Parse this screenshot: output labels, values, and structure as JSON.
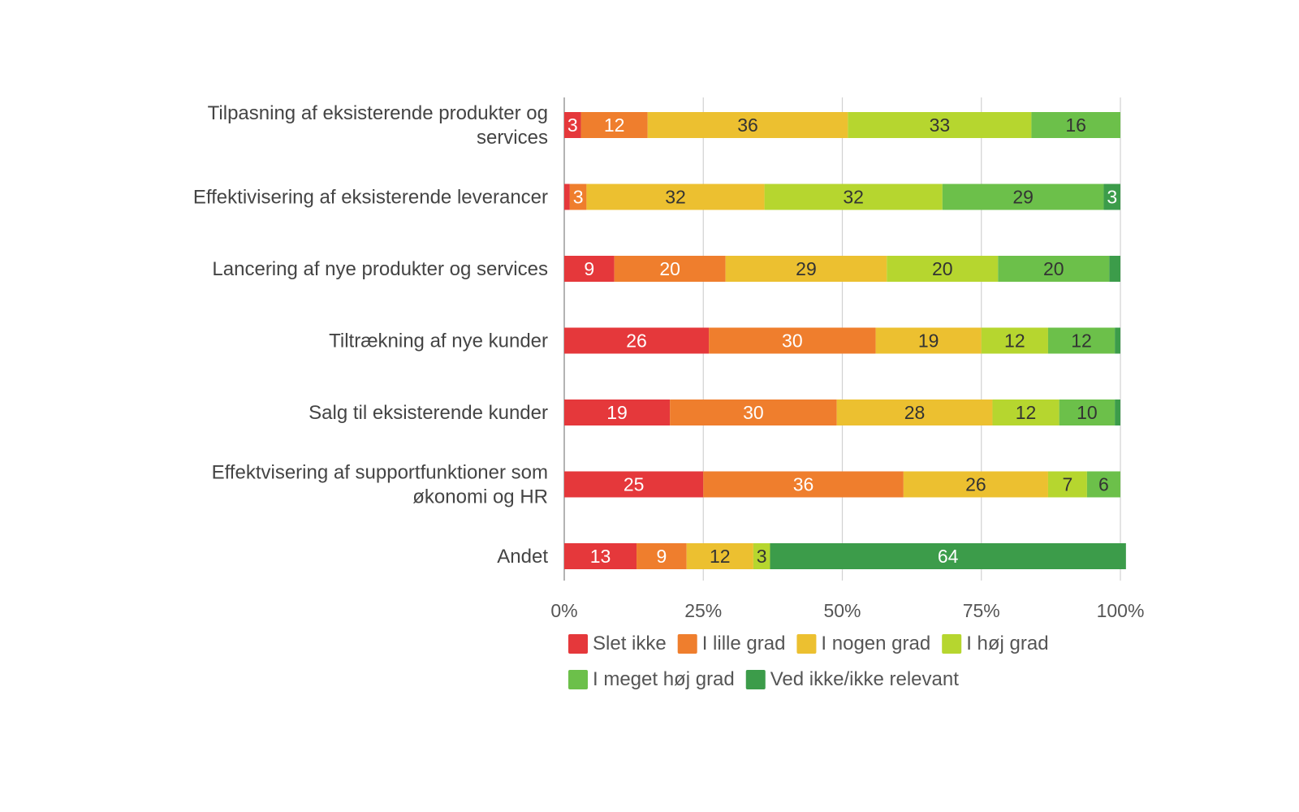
{
  "chart_data": {
    "type": "bar",
    "orientation": "horizontal",
    "stacked": true,
    "title": "",
    "xlabel": "",
    "ylabel": "",
    "xlim": [
      0,
      100
    ],
    "x_ticks": [
      "0%",
      "25%",
      "50%",
      "75%",
      "100%"
    ],
    "grid": true,
    "legend_position": "bottom",
    "categories": [
      [
        "Tilpasning af eksisterende produkter og",
        "services"
      ],
      [
        "Effektivisering af eksisterende leverancer"
      ],
      [
        "Lancering af nye produkter og services"
      ],
      [
        "Tiltrækning af nye kunder"
      ],
      [
        "Salg til eksisterende kunder"
      ],
      [
        "Effektvisering af supportfunktioner som",
        "økonomi og HR"
      ],
      [
        "Andet"
      ]
    ],
    "series": [
      {
        "name": "Slet ikke",
        "color": "#e5383b",
        "label_color": "#ffffff",
        "values": [
          3,
          1,
          9,
          26,
          19,
          25,
          13
        ]
      },
      {
        "name": "I lille grad",
        "color": "#ef7e2d",
        "label_color": "#ffffff",
        "values": [
          12,
          3,
          20,
          30,
          30,
          36,
          9
        ]
      },
      {
        "name": "I nogen grad",
        "color": "#ecc030",
        "label_color": "#333333",
        "values": [
          36,
          32,
          29,
          19,
          28,
          26,
          12
        ]
      },
      {
        "name": "I høj grad",
        "color": "#b6d62f",
        "label_color": "#333333",
        "values": [
          33,
          32,
          20,
          12,
          12,
          7,
          3
        ]
      },
      {
        "name": "I meget høj grad",
        "color": "#6cc04a",
        "label_color": "#333333",
        "values": [
          16,
          29,
          20,
          12,
          10,
          6,
          0
        ]
      },
      {
        "name": "Ved ikke/ikke relevant",
        "color": "#3c9c4a",
        "label_color": "#ffffff",
        "values": [
          0,
          3,
          2,
          1,
          1,
          0,
          64
        ]
      }
    ],
    "data_labels": [
      [
        "3",
        "12",
        "36",
        "33",
        "16",
        ""
      ],
      [
        "",
        "3",
        "32",
        "32",
        "29",
        "3"
      ],
      [
        "9",
        "20",
        "29",
        "20",
        "20",
        ""
      ],
      [
        "26",
        "30",
        "19",
        "12",
        "12",
        ""
      ],
      [
        "19",
        "30",
        "28",
        "12",
        "10",
        ""
      ],
      [
        "25",
        "36",
        "26",
        "7",
        "6",
        ""
      ],
      [
        "13",
        "9",
        "12",
        "3",
        "",
        "64"
      ]
    ]
  }
}
